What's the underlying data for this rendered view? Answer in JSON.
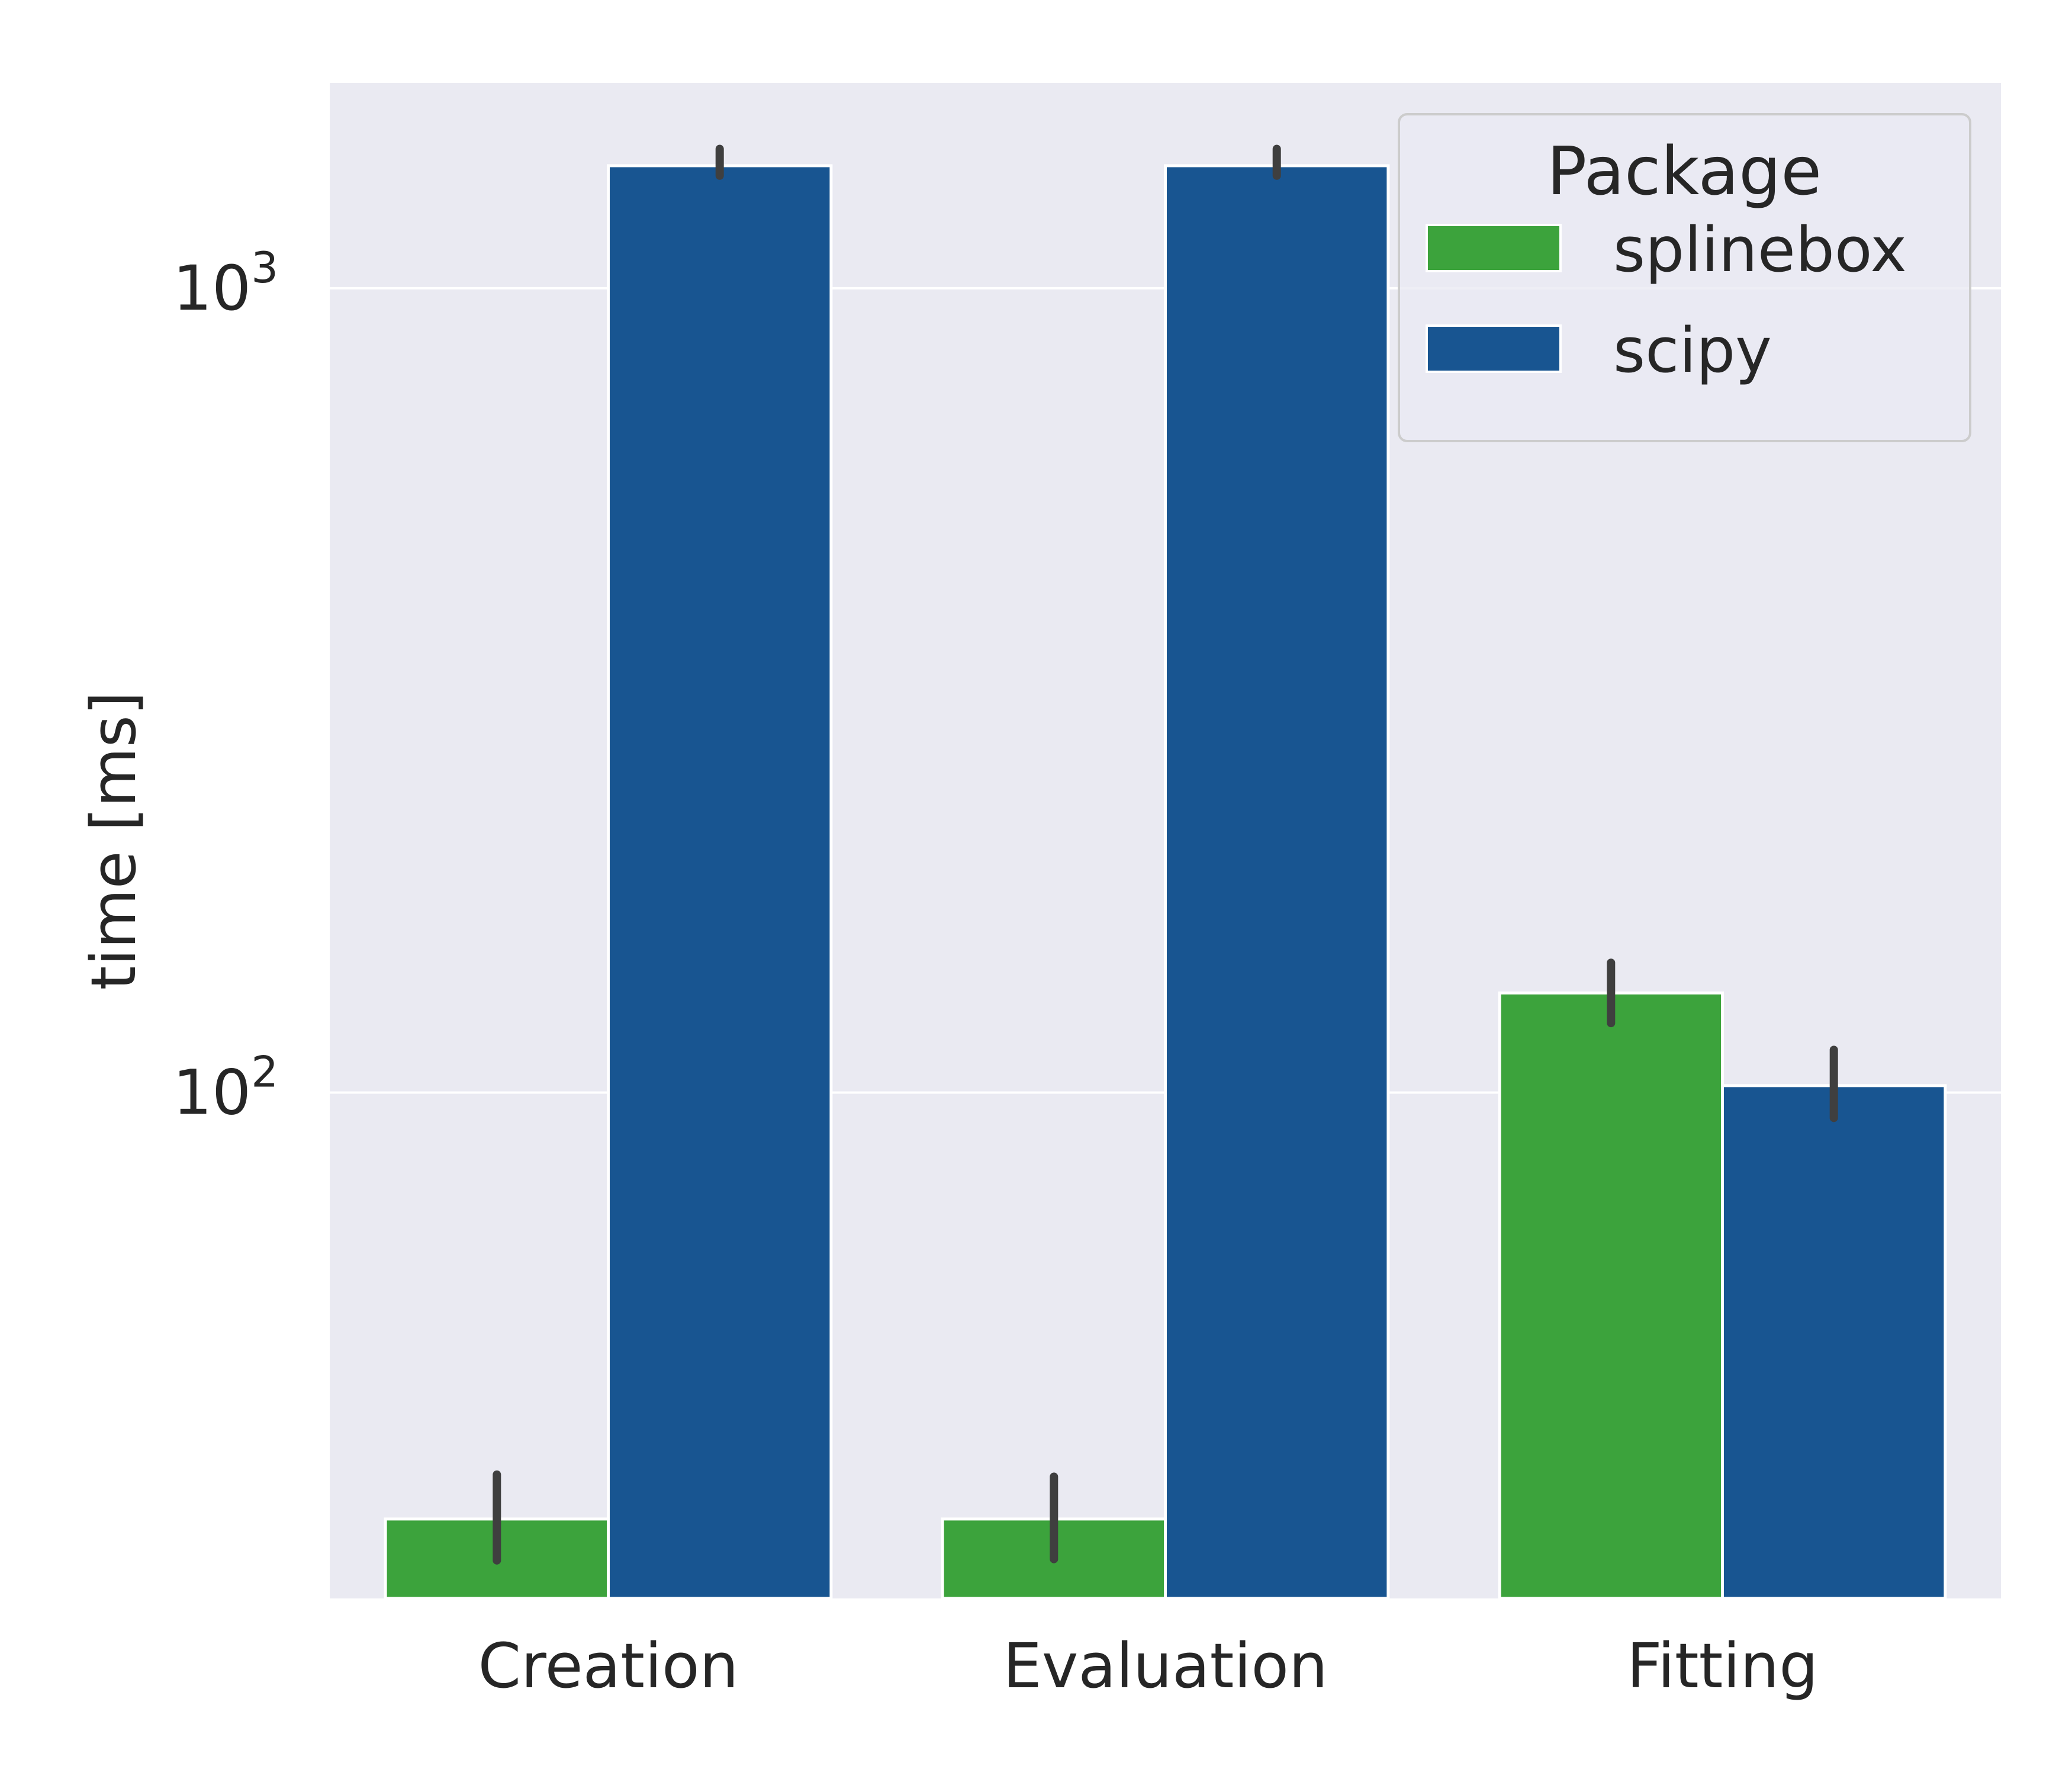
{
  "chart_data": {
    "type": "bar",
    "title": "",
    "xlabel": "",
    "ylabel": "time [ms]",
    "yscale": "log",
    "ylim": [
      23.5,
      1800
    ],
    "yticks": [
      {
        "value": 100,
        "base": "10",
        "exp": "2"
      },
      {
        "value": 1000,
        "base": "10",
        "exp": "3"
      }
    ],
    "categories": [
      "Creation",
      "Evaluation",
      "Fitting"
    ],
    "series": [
      {
        "name": "splinebox",
        "color": "#3ca33c",
        "values": [
          29.5,
          29.5,
          133
        ],
        "error_low": [
          26.2,
          26.3,
          122
        ],
        "error_high": [
          33.5,
          33.3,
          145
        ]
      },
      {
        "name": "scipy",
        "color": "#185591",
        "values": [
          1420,
          1420,
          102
        ],
        "error_low": [
          1380,
          1380,
          93
        ],
        "error_high": [
          1490,
          1490,
          113
        ]
      }
    ],
    "legend": {
      "title": "Package",
      "position": "top-right"
    },
    "grid": true,
    "style": {
      "plot_background": "#eaeaf2",
      "grid_color": "#ffffff",
      "errorbar_color": "#3f3f3f"
    }
  }
}
